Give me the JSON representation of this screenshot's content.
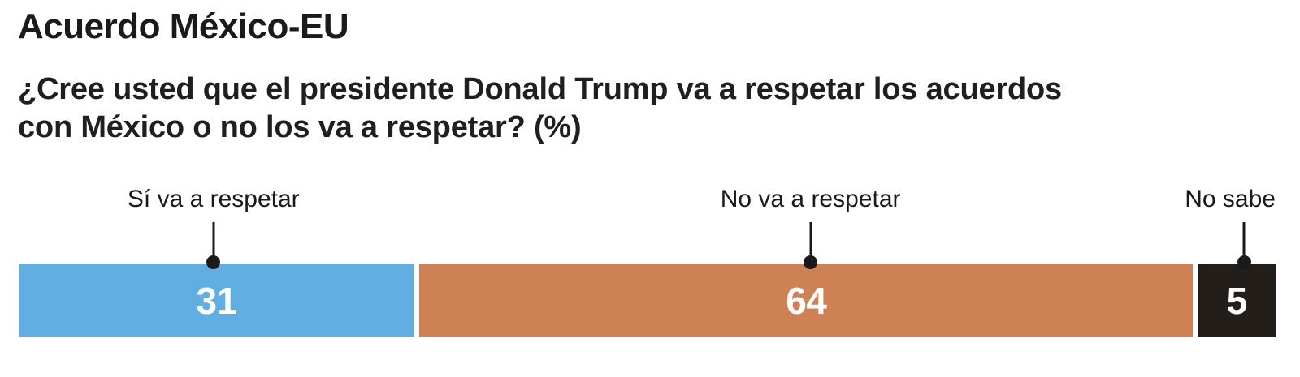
{
  "chart_data": {
    "type": "bar",
    "subtype": "horizontal-stacked-100pct",
    "title": "Acuerdo México-EU",
    "question": "¿Cree usted que el presidente Donald Trump va a respetar los acuerdos con México o no los va a respetar? (%)",
    "question_lines": [
      "¿Cree usted que el presidente Donald Trump va a respetar los acuerdos",
      "con México o no los va a respetar? (%)"
    ],
    "unit": "%",
    "total": 100,
    "categories": [
      "Sí va a respetar",
      "No va a respetar",
      "No sabe"
    ],
    "values": [
      31,
      64,
      5
    ],
    "segments": [
      {
        "label": "Sí va a respetar",
        "value": 31,
        "color": "#60AEE2",
        "text_color": "#FFFFFF",
        "label_align": "center"
      },
      {
        "label": "No va a respetar",
        "value": 64,
        "color": "#CF8156",
        "text_color": "#FFFFFF",
        "label_align": "center"
      },
      {
        "label": "No sabe",
        "value": 5,
        "color": "#231E19",
        "text_color": "#FFFFFF",
        "label_align": "right"
      }
    ],
    "legend_position": "callouts-above-bar",
    "grid": false,
    "connector_color": "#1A1A1A",
    "background_color": "#FFFFFF"
  }
}
